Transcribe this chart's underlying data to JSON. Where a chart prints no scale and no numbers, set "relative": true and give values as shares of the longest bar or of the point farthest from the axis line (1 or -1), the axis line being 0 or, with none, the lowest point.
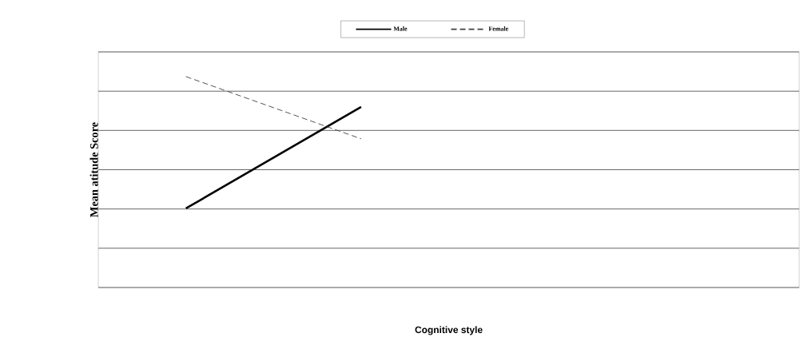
{
  "chart_data": {
    "type": "line",
    "xlabel": "Cognitive style",
    "ylabel": "Mean atitude Score",
    "relative": true,
    "categories": [
      null,
      null,
      null,
      null
    ],
    "series": [
      {
        "name": "Male",
        "color": "#000000",
        "line_style": "solid",
        "values": [
          0.375,
          0.856,
          null,
          null
        ]
      },
      {
        "name": "Female",
        "color": "#404040",
        "line_style": "dashed",
        "values": [
          1,
          0.705,
          null,
          null
        ]
      }
    ],
    "grid": "y",
    "legend": "top"
  }
}
